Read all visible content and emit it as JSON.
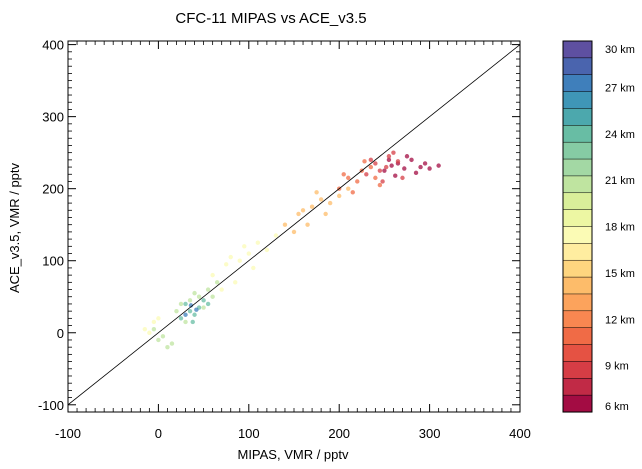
{
  "chart_data": {
    "type": "scatter",
    "title": "CFC-11 MIPAS vs ACE_v3.5",
    "xlabel": "MIPAS, VMR / pptv",
    "ylabel": "ACE_v3.5, VMR / pptv",
    "xlim": [
      -100,
      400
    ],
    "ylim": [
      -110,
      405
    ],
    "x_ticks": [
      -100,
      0,
      100,
      200,
      300,
      400
    ],
    "y_ticks": [
      -100,
      0,
      100,
      200,
      300,
      400
    ],
    "x_tick_labels": [
      "-100",
      "0",
      "100",
      "200",
      "300",
      "400"
    ],
    "y_tick_labels": [
      "-100",
      "0",
      "100",
      "200",
      "300",
      "400"
    ],
    "reference_line": "1:1",
    "grid": false,
    "colorbar": {
      "orientation": "vertical",
      "placement": "right",
      "range_km": [
        6,
        30
      ],
      "label_values": [
        30,
        27,
        24,
        21,
        18,
        15,
        12,
        9,
        6
      ],
      "labels": [
        "30 km",
        "27 km",
        "24 km",
        "21 km",
        "18 km",
        "15 km",
        "12 km",
        "9 km",
        "6 km"
      ],
      "colors_top_to_bottom": [
        "#5e50a1",
        "#4a64ae",
        "#3f7fbb",
        "#3f96b7",
        "#4ca8ad",
        "#68bda4",
        "#86cba4",
        "#a3d8a4",
        "#bfe4a0",
        "#d9ef9a",
        "#edf7a3",
        "#fbfbb5",
        "#ffeda0",
        "#fed57f",
        "#fdbc6a",
        "#fca35c",
        "#f88751",
        "#f06b46",
        "#e55243",
        "#d63d45",
        "#c12a46",
        "#a30c43"
      ]
    },
    "series": [
      {
        "altitude_km": 6,
        "color": "#a30c43",
        "points": [
          [
            250,
            225
          ],
          [
            258,
            232
          ],
          [
            265,
            235
          ],
          [
            272,
            228
          ],
          [
            280,
            240
          ],
          [
            285,
            222
          ],
          [
            262,
            218
          ],
          [
            275,
            245
          ],
          [
            290,
            230
          ],
          [
            255,
            240
          ]
        ]
      },
      {
        "altitude_km": 9,
        "color": "#d63d45",
        "points": [
          [
            230,
            220
          ],
          [
            240,
            235
          ],
          [
            245,
            225
          ],
          [
            255,
            245
          ],
          [
            260,
            250
          ],
          [
            248,
            210
          ],
          [
            270,
            215
          ],
          [
            235,
            240
          ],
          [
            252,
            230
          ],
          [
            265,
            238
          ]
        ]
      },
      {
        "altitude_km": 12,
        "color": "#f06b46",
        "points": [
          [
            200,
            200
          ],
          [
            210,
            215
          ],
          [
            220,
            210
          ],
          [
            225,
            225
          ],
          [
            235,
            230
          ],
          [
            215,
            195
          ],
          [
            240,
            215
          ],
          [
            205,
            220
          ],
          [
            228,
            238
          ],
          [
            245,
            205
          ]
        ]
      },
      {
        "altitude_km": 15,
        "color": "#fdbc6a",
        "points": [
          [
            140,
            150
          ],
          [
            155,
            165
          ],
          [
            170,
            175
          ],
          [
            180,
            185
          ],
          [
            190,
            180
          ],
          [
            165,
            150
          ],
          [
            200,
            190
          ],
          [
            150,
            140
          ],
          [
            175,
            195
          ],
          [
            210,
            200
          ],
          [
            185,
            165
          ],
          [
            160,
            170
          ]
        ]
      },
      {
        "altitude_km": 18,
        "color": "#fbfbb5",
        "points": [
          [
            60,
            80
          ],
          [
            75,
            95
          ],
          [
            90,
            100
          ],
          [
            100,
            110
          ],
          [
            110,
            125
          ],
          [
            85,
            70
          ],
          [
            120,
            115
          ],
          [
            70,
            60
          ],
          [
            95,
            120
          ],
          [
            130,
            135
          ],
          [
            105,
            90
          ],
          [
            80,
            105
          ]
        ]
      },
      {
        "altitude_km": 21,
        "color": "#bfe4a0",
        "points": [
          [
            20,
            30
          ],
          [
            35,
            45
          ],
          [
            45,
            50
          ],
          [
            55,
            60
          ],
          [
            30,
            15
          ],
          [
            65,
            70
          ],
          [
            25,
            40
          ],
          [
            50,
            35
          ],
          [
            40,
            55
          ],
          [
            60,
            50
          ]
        ]
      },
      {
        "altitude_km": 24,
        "color": "#68bda4",
        "points": [
          [
            25,
            20
          ],
          [
            35,
            30
          ],
          [
            45,
            35
          ],
          [
            40,
            25
          ],
          [
            30,
            40
          ],
          [
            50,
            45
          ],
          [
            55,
            40
          ],
          [
            38,
            15
          ]
        ]
      },
      {
        "altitude_km": 27,
        "color": "#3f7fbb",
        "points": [
          [
            30,
            25
          ],
          [
            42,
            32
          ],
          [
            36,
            38
          ]
        ]
      },
      {
        "altitude_km": 6,
        "color": "#a30c43",
        "points": [
          [
            295,
            235
          ],
          [
            300,
            228
          ],
          [
            310,
            232
          ]
        ]
      },
      {
        "altitude_km": 21,
        "color": "#bfe4a0",
        "points": [
          [
            0,
            -10
          ],
          [
            10,
            -20
          ],
          [
            5,
            -5
          ],
          [
            15,
            -15
          ],
          [
            -5,
            5
          ]
        ]
      },
      {
        "altitude_km": 18,
        "color": "#fbfbb5",
        "points": [
          [
            -15,
            5
          ],
          [
            -5,
            15
          ],
          [
            0,
            20
          ],
          [
            -10,
            0
          ]
        ]
      }
    ]
  }
}
